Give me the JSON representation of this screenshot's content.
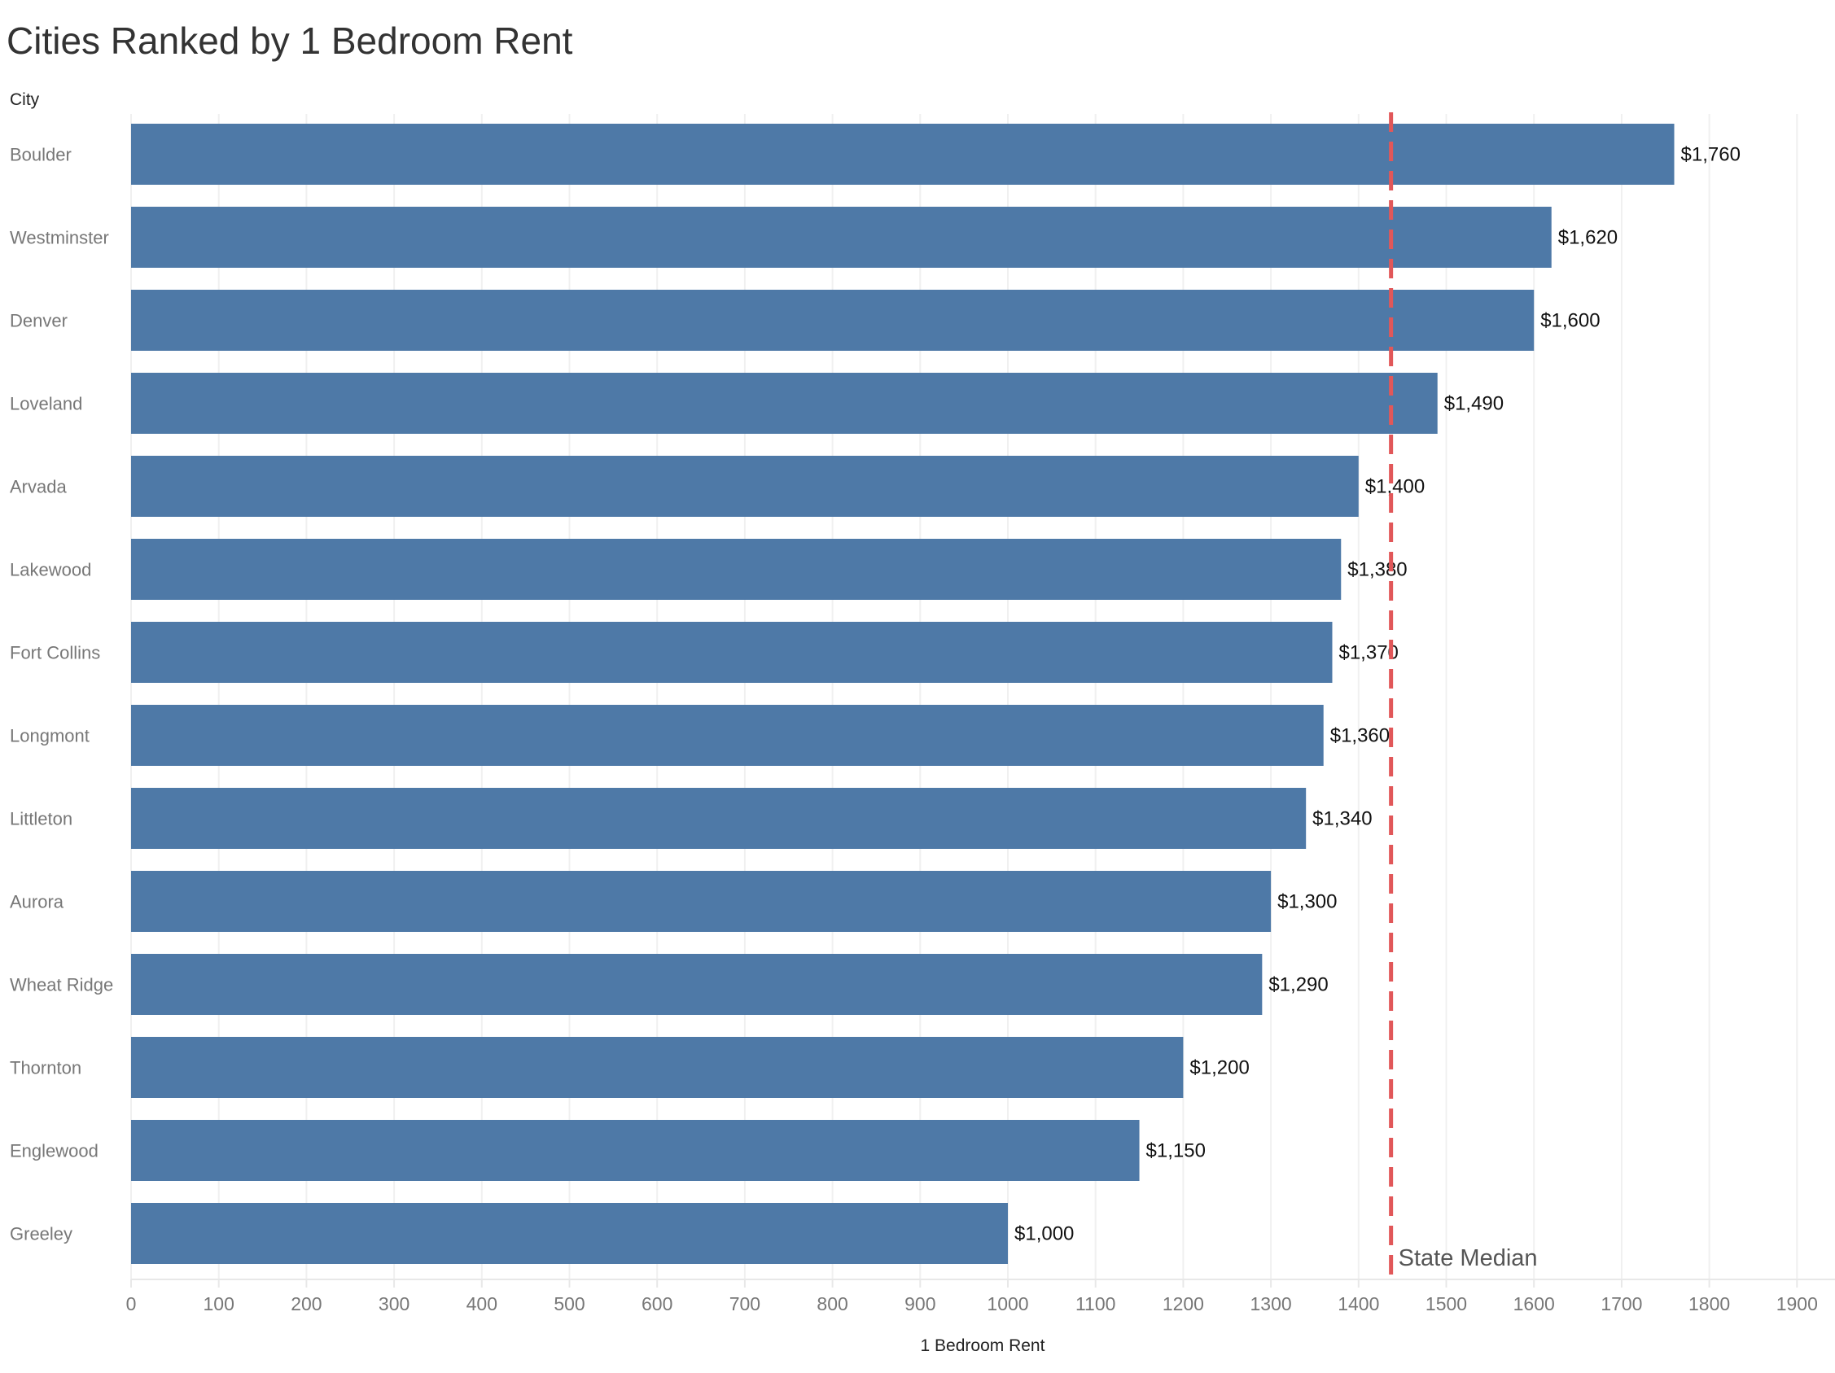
{
  "chart_data": {
    "type": "bar",
    "orientation": "horizontal",
    "title": "Cities Ranked by 1 Bedroom Rent",
    "ylabel": "City",
    "xlabel": "1 Bedroom Rent",
    "categories": [
      "Boulder",
      "Westminster",
      "Denver",
      "Loveland",
      "Arvada",
      "Lakewood",
      "Fort Collins",
      "Longmont",
      "Littleton",
      "Aurora",
      "Wheat Ridge",
      "Thornton",
      "Englewood",
      "Greeley"
    ],
    "values": [
      1760,
      1620,
      1600,
      1490,
      1400,
      1380,
      1370,
      1360,
      1340,
      1300,
      1290,
      1200,
      1150,
      1000
    ],
    "data_labels": [
      "$1,760",
      "$1,620",
      "$1,600",
      "$1,490",
      "$1,400",
      "$1,380",
      "$1,370",
      "$1,360",
      "$1,340",
      "$1,300",
      "$1,290",
      "$1,200",
      "$1,150",
      "$1,000"
    ],
    "xlim": [
      0,
      1900
    ],
    "xticks": [
      0,
      100,
      200,
      300,
      400,
      500,
      600,
      700,
      800,
      900,
      1000,
      1100,
      1200,
      1300,
      1400,
      1500,
      1600,
      1700,
      1800,
      1900
    ],
    "grid": true,
    "reference_line": {
      "label": "State Median",
      "value": 1437,
      "color": "#e15759",
      "style": "dashed"
    },
    "bar_color": "#4e79a7"
  }
}
